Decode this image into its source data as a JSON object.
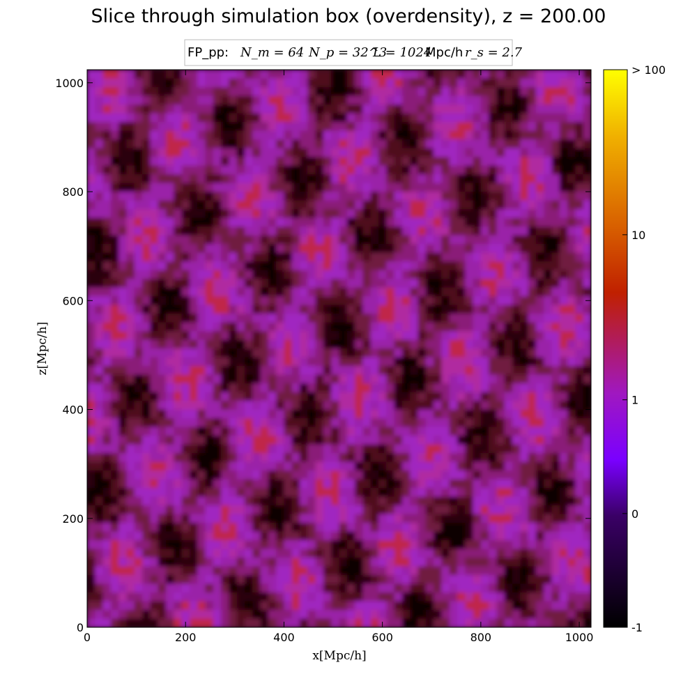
{
  "chart_data": {
    "type": "heatmap",
    "title": "Slice through simulation box (overdensity), z = 200.00",
    "legend": {
      "prefix": "FP_pp:",
      "nm": "N_m = 64",
      "np": "N_p = 32^3",
      "box": "L = 1024",
      "box_unit": "Mpc/h",
      "rs": "r_s = 2.7",
      "placement": "top-center"
    },
    "xlabel": "x[Mpc/h]",
    "ylabel": "z[Mpc/h]",
    "xlim": [
      0,
      1024
    ],
    "ylim": [
      0,
      1024
    ],
    "xticks": [
      "0",
      "200",
      "400",
      "600",
      "800",
      "1000"
    ],
    "yticks": [
      "0",
      "200",
      "400",
      "600",
      "800",
      "1000"
    ],
    "grid_cells": 64,
    "colorbar": {
      "ticks": [
        "-1",
        "0",
        "1",
        "10",
        "> 100"
      ],
      "colors": [
        "#000000",
        "#3a0066",
        "#7a00ff",
        "#b020b0",
        "#c02000",
        "#e07000",
        "#f0b000",
        "#ffff00"
      ]
    }
  }
}
